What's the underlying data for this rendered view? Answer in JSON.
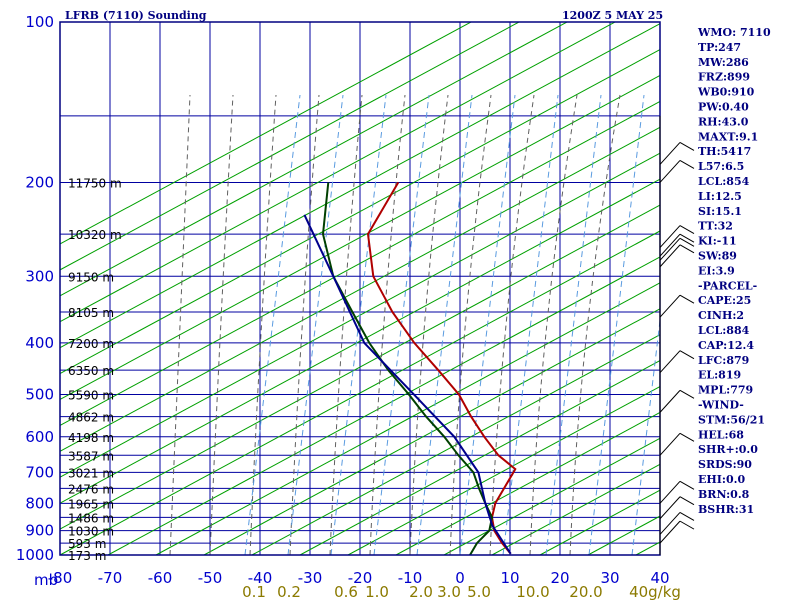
{
  "chart_data": {
    "type": "line",
    "title": "LFRB (7110) Sounding",
    "time": "1200Z  5 MAY 25",
    "skew_t": true,
    "temperature_range": [
      -80,
      40
    ],
    "pressure_range": [
      100,
      1000
    ],
    "y_log_scale": true,
    "y_unit_label": "mb",
    "pressure_ticks": [
      "100",
      "200",
      "300",
      "400",
      "500",
      "600",
      "700",
      "800",
      "900",
      "1000"
    ],
    "temperature_ticks": [
      "-80",
      "-70",
      "-60",
      "-50",
      "-40",
      "-30",
      "-20",
      "-10",
      "0",
      "10",
      "20",
      "30",
      "40"
    ],
    "mixing_ratio_labels": [
      "0.1",
      "0.2",
      "0.6",
      "1.0",
      "2.0",
      "3.0",
      "5.0",
      "10.0",
      "20.0",
      "40g/kg"
    ],
    "heights": [
      {
        "p": 200,
        "label": "11750 m"
      },
      {
        "p": 250,
        "label": "10320 m"
      },
      {
        "p": 300,
        "label": "9150 m"
      },
      {
        "p": 350,
        "label": "8105 m"
      },
      {
        "p": 400,
        "label": "7200 m"
      },
      {
        "p": 450,
        "label": "6350 m"
      },
      {
        "p": 500,
        "label": "5590 m"
      },
      {
        "p": 550,
        "label": "4862 m"
      },
      {
        "p": 600,
        "label": "4198 m"
      },
      {
        "p": 650,
        "label": "3587 m"
      },
      {
        "p": 700,
        "label": "3021 m"
      },
      {
        "p": 750,
        "label": "2476 m"
      },
      {
        "p": 800,
        "label": "1965 m"
      },
      {
        "p": 850,
        "label": "1486 m"
      },
      {
        "p": 900,
        "label": "1030 m"
      },
      {
        "p": 950,
        "label": "593 m"
      },
      {
        "p": 1000,
        "label": "173 m"
      }
    ],
    "series": [
      {
        "key": "temperature",
        "color": "#b00000",
        "points": [
          {
            "p": 200,
            "t": -56
          },
          {
            "p": 250,
            "t": -56
          },
          {
            "p": 300,
            "t": -50
          },
          {
            "p": 350,
            "t": -42
          },
          {
            "p": 400,
            "t": -34
          },
          {
            "p": 450,
            "t": -26
          },
          {
            "p": 500,
            "t": -19
          },
          {
            "p": 550,
            "t": -14
          },
          {
            "p": 600,
            "t": -9
          },
          {
            "p": 650,
            "t": -4
          },
          {
            "p": 690,
            "t": 1
          },
          {
            "p": 700,
            "t": 1
          },
          {
            "p": 800,
            "t": 1
          },
          {
            "p": 850,
            "t": 2
          },
          {
            "p": 900,
            "t": 4
          },
          {
            "p": 950,
            "t": 7
          },
          {
            "p": 995,
            "t": 10
          }
        ]
      },
      {
        "key": "dewpoint",
        "color": "#004000",
        "points": [
          {
            "p": 200,
            "t": -70
          },
          {
            "p": 250,
            "t": -65
          },
          {
            "p": 300,
            "t": -58
          },
          {
            "p": 350,
            "t": -50
          },
          {
            "p": 400,
            "t": -43
          },
          {
            "p": 450,
            "t": -36
          },
          {
            "p": 500,
            "t": -29
          },
          {
            "p": 550,
            "t": -23
          },
          {
            "p": 600,
            "t": -17
          },
          {
            "p": 650,
            "t": -12
          },
          {
            "p": 700,
            "t": -7
          },
          {
            "p": 750,
            "t": -4
          },
          {
            "p": 800,
            "t": -1
          },
          {
            "p": 850,
            "t": 2
          },
          {
            "p": 900,
            "t": 3
          },
          {
            "p": 950,
            "t": 2
          },
          {
            "p": 1000,
            "t": 2
          }
        ]
      },
      {
        "key": "parcel",
        "color": "#00008b",
        "points": [
          {
            "p": 230,
            "t": -71
          },
          {
            "p": 300,
            "t": -58
          },
          {
            "p": 400,
            "t": -44
          },
          {
            "p": 500,
            "t": -28
          },
          {
            "p": 600,
            "t": -15
          },
          {
            "p": 700,
            "t": -6
          },
          {
            "p": 800,
            "t": -1
          },
          {
            "p": 880,
            "t": 3
          },
          {
            "p": 995,
            "t": 10
          }
        ]
      }
    ],
    "wind_barb_pressures": [
      185,
      200,
      265,
      275,
      280,
      288,
      358,
      455,
      540,
      650,
      800,
      855,
      915,
      950
    ],
    "indices": [
      "WMO: 7110",
      "TP:247",
      "MW:286",
      "FRZ:899",
      "WB0:910",
      "PW:0.40",
      "RH:43.0",
      "MAXT:9.1",
      "TH:5417",
      "L57:6.5",
      "LCL:854",
      "LI:12.5",
      "SI:15.1",
      "TT:32",
      "KI:-11",
      "SW:89",
      "EI:3.9",
      "-PARCEL-",
      "CAPE:25",
      "CINH:2",
      "LCL:884",
      "CAP:12.4",
      "LFC:879",
      "EL:819",
      "MPL:779",
      "-WIND-",
      "STM:56/21",
      "HEL:68",
      "SHR+:0.0",
      "SRDS:90",
      "EHI:0.0",
      "BRN:0.8",
      "BSHR:31"
    ],
    "colors": {
      "frame": "#000080",
      "grid": "#0000a0",
      "dry_adiabat": "#00a000",
      "moist_adiabat": "#606060",
      "mixing_ratio": "#5a9be0",
      "tick_text": "#0000cc",
      "mix_text": "#8b7a00"
    }
  }
}
